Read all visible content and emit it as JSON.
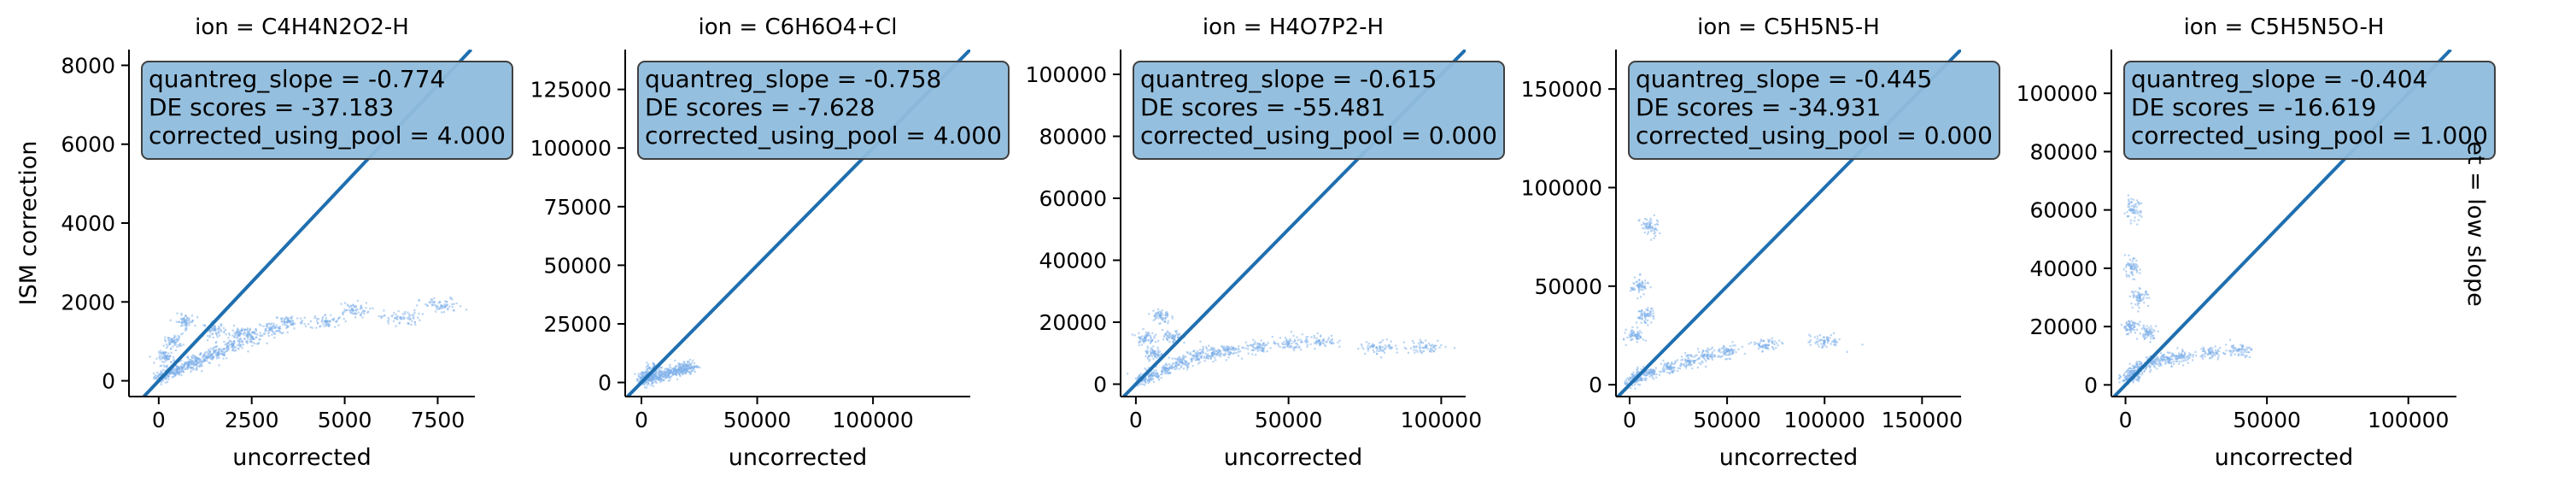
{
  "colors": {
    "density": "#7fb0ea",
    "diagonal": "#1f6fb0",
    "box_fill": "#8fbcdc",
    "box_edge": "#404040",
    "axis": "#000000"
  },
  "figure": {
    "row_label": "et = low slope"
  },
  "chart_data": [
    {
      "type": "scatter",
      "title": "ion = C4H4N2O2-H",
      "xlabel": "uncorrected",
      "ylabel": "ISM correction",
      "xlim": [
        -800,
        8500
      ],
      "ylim": [
        -400,
        8400
      ],
      "xticks": [
        0,
        2500,
        5000,
        7500
      ],
      "xtick_labels": [
        "0",
        "2500",
        "5000",
        "7500"
      ],
      "yticks": [
        0,
        2000,
        4000,
        6000,
        8000
      ],
      "ytick_labels": [
        "0",
        "2000",
        "4000",
        "6000",
        "8000"
      ],
      "diagonal": "y = x",
      "annotation": [
        "quantreg_slope = -0.774",
        "DE scores = -37.183",
        "corrected_using_pool = 4.000"
      ],
      "points": [
        [
          100,
          100
        ],
        [
          300,
          200
        ],
        [
          500,
          300
        ],
        [
          800,
          400
        ],
        [
          1000,
          500
        ],
        [
          1300,
          600
        ],
        [
          1600,
          700
        ],
        [
          2000,
          900
        ],
        [
          2500,
          1100
        ],
        [
          3000,
          1300
        ],
        [
          3500,
          1500
        ],
        [
          4500,
          1500
        ],
        [
          5200,
          1800
        ],
        [
          6500,
          1600
        ],
        [
          7600,
          1900
        ],
        [
          400,
          1000
        ],
        [
          700,
          1500
        ],
        [
          200,
          600
        ],
        [
          1500,
          1300
        ],
        [
          2200,
          1200
        ]
      ]
    },
    {
      "type": "scatter",
      "title": "ion = C6H6O4+Cl",
      "xlabel": "uncorrected",
      "ylabel": "",
      "xlim": [
        -7000,
        142000
      ],
      "ylim": [
        -6000,
        142000
      ],
      "xticks": [
        0,
        50000,
        100000
      ],
      "xtick_labels": [
        "0",
        "50000",
        "100000"
      ],
      "yticks": [
        0,
        25000,
        50000,
        75000,
        100000,
        125000
      ],
      "ytick_labels": [
        "0",
        "25000",
        "50000",
        "75000",
        "100000",
        "125000"
      ],
      "diagonal": "y = x",
      "annotation": [
        "quantreg_slope = -0.758",
        "DE scores = -7.628",
        "corrected_using_pool = 4.000"
      ],
      "points": [
        [
          1500,
          800
        ],
        [
          3000,
          1500
        ],
        [
          5000,
          2500
        ],
        [
          8000,
          3000
        ],
        [
          12000,
          4000
        ],
        [
          15000,
          5000
        ],
        [
          18000,
          5500
        ],
        [
          20000,
          7000
        ],
        [
          2000,
          3000
        ],
        [
          6000,
          6000
        ]
      ]
    },
    {
      "type": "scatter",
      "title": "ion = H4O7P2-H",
      "xlabel": "uncorrected",
      "ylabel": "",
      "xlim": [
        -5000,
        108000
      ],
      "ylim": [
        -4000,
        108000
      ],
      "xticks": [
        0,
        50000,
        100000
      ],
      "xtick_labels": [
        "0",
        "50000",
        "100000"
      ],
      "yticks": [
        0,
        20000,
        40000,
        60000,
        80000,
        100000
      ],
      "ytick_labels": [
        "0",
        "20000",
        "40000",
        "60000",
        "80000",
        "100000"
      ],
      "diagonal": "y = x",
      "annotation": [
        "quantreg_slope = -0.615",
        "DE scores = -55.481",
        "corrected_using_pool = 0.000"
      ],
      "points": [
        [
          2000,
          1500
        ],
        [
          5000,
          3000
        ],
        [
          10000,
          5000
        ],
        [
          15000,
          7000
        ],
        [
          20000,
          9000
        ],
        [
          25000,
          10000
        ],
        [
          30000,
          11000
        ],
        [
          40000,
          12000
        ],
        [
          50000,
          13000
        ],
        [
          60000,
          14000
        ],
        [
          80000,
          12000
        ],
        [
          95000,
          12000
        ],
        [
          3000,
          15000
        ],
        [
          8000,
          22000
        ],
        [
          6000,
          10000
        ],
        [
          12000,
          15000
        ]
      ]
    },
    {
      "type": "scatter",
      "title": "ion = C5H5N5-H",
      "xlabel": "uncorrected",
      "ylabel": "",
      "xlim": [
        -7000,
        170000
      ],
      "ylim": [
        -6000,
        170000
      ],
      "xticks": [
        0,
        50000,
        100000,
        150000
      ],
      "xtick_labels": [
        "0",
        "50000",
        "100000",
        "150000"
      ],
      "yticks": [
        0,
        50000,
        100000,
        150000
      ],
      "ytick_labels": [
        "0",
        "50000",
        "100000",
        "150000"
      ],
      "diagonal": "y = x",
      "annotation": [
        "quantreg_slope = -0.445",
        "DE scores = -34.931",
        "corrected_using_pool = 0.000"
      ],
      "points": [
        [
          2000,
          2000
        ],
        [
          5000,
          4000
        ],
        [
          10000,
          6000
        ],
        [
          20000,
          9000
        ],
        [
          30000,
          12000
        ],
        [
          40000,
          15000
        ],
        [
          50000,
          17000
        ],
        [
          70000,
          20000
        ],
        [
          100000,
          22000
        ],
        [
          3000,
          25000
        ],
        [
          5000,
          50000
        ],
        [
          10000,
          80000
        ],
        [
          8000,
          35000
        ]
      ]
    },
    {
      "type": "scatter",
      "title": "ion = C5H5N5O-H",
      "xlabel": "uncorrected",
      "ylabel": "",
      "xlim": [
        -5000,
        117000
      ],
      "ylim": [
        -4000,
        115000
      ],
      "xticks": [
        0,
        50000,
        100000
      ],
      "xtick_labels": [
        "0",
        "50000",
        "100000"
      ],
      "yticks": [
        0,
        20000,
        40000,
        60000,
        80000,
        100000
      ],
      "ytick_labels": [
        "0",
        "20000",
        "40000",
        "60000",
        "80000",
        "100000"
      ],
      "diagonal": "y = x",
      "annotation": [
        "quantreg_slope = -0.404",
        "DE scores = -16.619",
        "corrected_using_pool = 1.000"
      ],
      "points": [
        [
          1000,
          2000
        ],
        [
          3000,
          4000
        ],
        [
          5000,
          6000
        ],
        [
          10000,
          8000
        ],
        [
          15000,
          9000
        ],
        [
          20000,
          10000
        ],
        [
          30000,
          11000
        ],
        [
          40000,
          12000
        ],
        [
          1500,
          20000
        ],
        [
          2000,
          40000
        ],
        [
          2500,
          60000
        ],
        [
          5000,
          30000
        ],
        [
          8000,
          18000
        ]
      ]
    }
  ]
}
